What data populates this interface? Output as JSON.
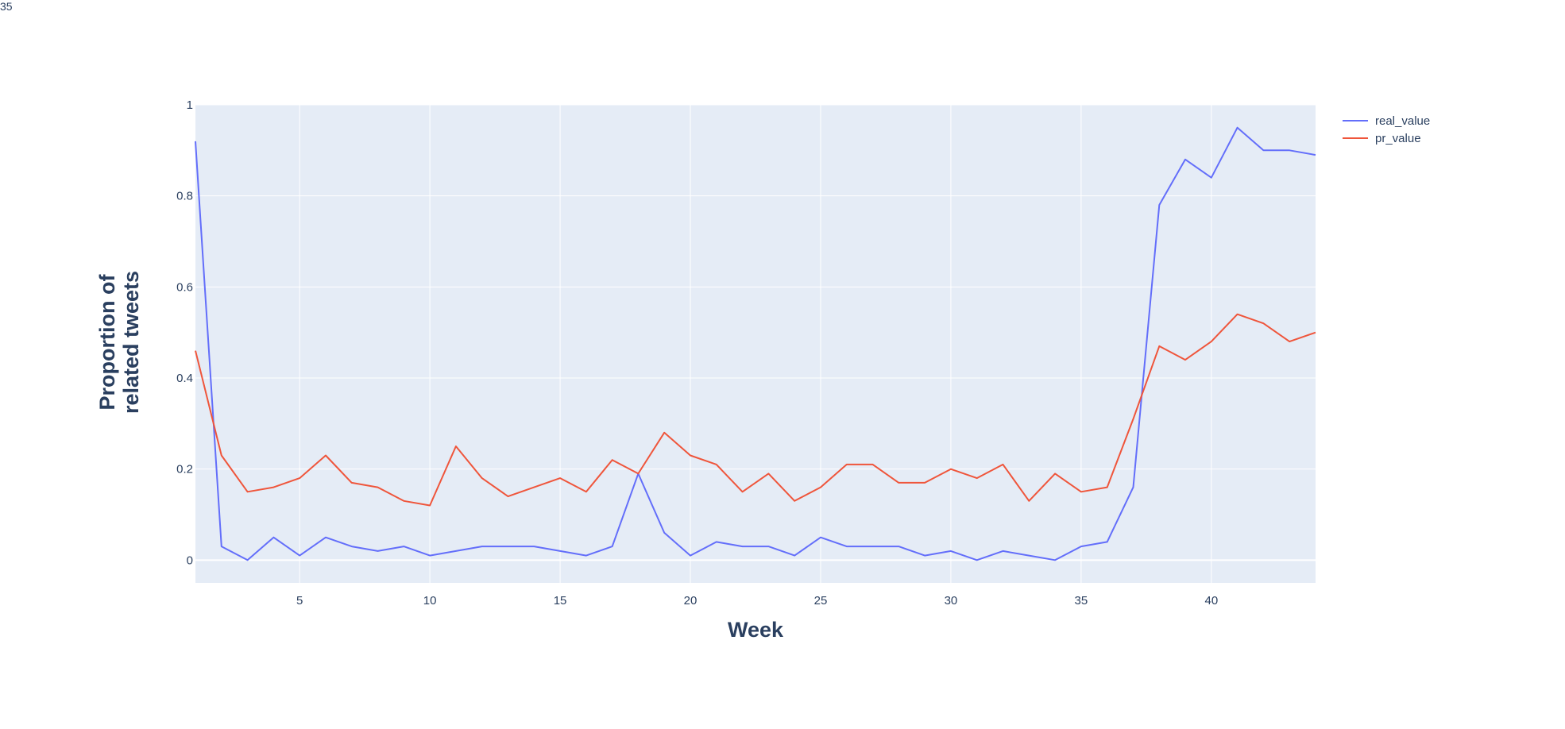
{
  "corner_text": "35",
  "chart_data": {
    "type": "line",
    "title": "",
    "xlabel": "Week",
    "ylabel": "Proportion of related tweets",
    "ylabel_lines": [
      "Proportion of",
      "related tweets"
    ],
    "xlim": [
      1,
      44
    ],
    "ylim": [
      -0.05,
      1
    ],
    "x_ticks": [
      5,
      10,
      15,
      20,
      25,
      30,
      35,
      40
    ],
    "y_ticks": [
      0,
      0.2,
      0.4,
      0.6,
      0.8,
      1
    ],
    "y_tick_labels": [
      "0",
      "0.2",
      "0.4",
      "0.6",
      "0.8",
      "1"
    ],
    "grid": true,
    "legend_position": "top-right outside",
    "x": [
      1,
      2,
      3,
      4,
      5,
      6,
      7,
      8,
      9,
      10,
      11,
      12,
      13,
      14,
      15,
      16,
      17,
      18,
      19,
      20,
      21,
      22,
      23,
      24,
      25,
      26,
      27,
      28,
      29,
      30,
      31,
      32,
      33,
      34,
      35,
      36,
      37,
      38,
      39,
      40,
      41,
      42,
      43,
      44
    ],
    "series": [
      {
        "name": "real_value",
        "color": "#636efa",
        "values": [
          0.92,
          0.03,
          0.0,
          0.05,
          0.01,
          0.05,
          0.03,
          0.02,
          0.03,
          0.01,
          0.02,
          0.03,
          0.03,
          0.03,
          0.02,
          0.01,
          0.03,
          0.19,
          0.06,
          0.01,
          0.04,
          0.03,
          0.03,
          0.01,
          0.05,
          0.03,
          0.03,
          0.03,
          0.01,
          0.02,
          0.0,
          0.02,
          0.01,
          0.0,
          0.03,
          0.04,
          0.16,
          0.78,
          0.88,
          0.84,
          0.95,
          0.9,
          0.9,
          0.89
        ]
      },
      {
        "name": "pr_value",
        "color": "#ef553b",
        "values": [
          0.46,
          0.23,
          0.15,
          0.16,
          0.18,
          0.23,
          0.17,
          0.16,
          0.13,
          0.12,
          0.25,
          0.18,
          0.14,
          0.16,
          0.18,
          0.15,
          0.22,
          0.19,
          0.28,
          0.23,
          0.21,
          0.15,
          0.19,
          0.13,
          0.16,
          0.21,
          0.21,
          0.17,
          0.17,
          0.2,
          0.18,
          0.21,
          0.13,
          0.19,
          0.15,
          0.16,
          0.31,
          0.47,
          0.44,
          0.48,
          0.54,
          0.52,
          0.48,
          0.5
        ]
      }
    ],
    "colors": {
      "plot_bg": "#e5ecf6",
      "grid": "#ffffff",
      "text": "#2a3f5f"
    }
  }
}
